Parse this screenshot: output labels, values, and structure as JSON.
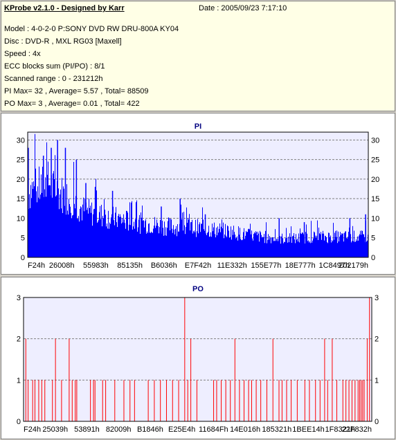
{
  "header": {
    "title": "KProbe v2.1.0 - Designed by Karr",
    "date": "Date : 2005/09/23 7:17:10",
    "lines": [
      "Model : 4-0-2-0 P:SONY     DVD RW DRU-800A  KY04",
      "Disc : DVD-R , MXL RG03 [Maxell]",
      "Speed : 4x",
      "ECC blocks sum (PI/PO) : 8/1",
      "Scanned range : 0 - 231212h",
      "PI Max= 32 , Average= 5.57 , Total= 88509",
      "PO Max= 3 , Average= 0.01 , Total= 422"
    ]
  },
  "colors": {
    "pi_fill": "#0000ff",
    "po_line": "#ff0000",
    "plot_bg": "#eeeeff",
    "grid": "#808080"
  },
  "chart_data": [
    {
      "type": "bar",
      "title": "PI",
      "x_tick_labels": [
        "F24h",
        "26008h",
        "55983h",
        "85135h",
        "B6036h",
        "E7F42h",
        "11E332h",
        "155E77h",
        "18E777h",
        "1C8497h",
        "202179h"
      ],
      "xlim": [
        0,
        2167288
      ],
      "ylim": [
        0,
        32
      ],
      "y_ticks": [
        0,
        5,
        10,
        15,
        20,
        25,
        30
      ],
      "grid": true,
      "envelope": {
        "x": [
          0,
          20000,
          60000,
          100000,
          140000,
          160000,
          200000,
          240000,
          300000,
          350000,
          400000,
          450000,
          500000,
          550000,
          600000,
          650000,
          700000,
          750000,
          800000,
          900000,
          1000000,
          1100000,
          1200000,
          1300000,
          1400000,
          1500000,
          1600000,
          1700000,
          1800000,
          1900000,
          2000000,
          2100000,
          2167288
        ],
        "values": [
          18,
          20,
          20,
          21,
          22,
          20,
          19,
          18,
          16,
          14,
          13,
          12.5,
          12,
          11.5,
          11,
          10.5,
          10,
          10,
          9.5,
          9,
          9,
          8.5,
          8,
          7.5,
          6.5,
          6,
          5.5,
          5.5,
          6,
          6,
          6,
          6,
          6
        ]
      },
      "peaks": [
        {
          "x": 4000,
          "y": 28
        },
        {
          "x": 100000,
          "y": 26
        },
        {
          "x": 150000,
          "y": 28
        },
        {
          "x": 190000,
          "y": 30
        },
        {
          "x": 240000,
          "y": 28
        },
        {
          "x": 310000,
          "y": 25
        },
        {
          "x": 370000,
          "y": 19
        },
        {
          "x": 430000,
          "y": 18
        },
        {
          "x": 540000,
          "y": 17
        },
        {
          "x": 660000,
          "y": 14
        },
        {
          "x": 850000,
          "y": 13
        },
        {
          "x": 970000,
          "y": 15
        },
        {
          "x": 1130000,
          "y": 11
        },
        {
          "x": 1600000,
          "y": 10
        },
        {
          "x": 1760000,
          "y": 9
        },
        {
          "x": 2050000,
          "y": 10
        },
        {
          "x": 2150000,
          "y": 11
        }
      ]
    },
    {
      "type": "bar",
      "title": "PO",
      "x_tick_labels": [
        "F24h",
        "25039h",
        "53891h",
        "82009h",
        "B1846h",
        "E25E4h",
        "11684Fh",
        "14E016h",
        "185321h",
        "1BEE14h",
        "1F8321h",
        "22F832h"
      ],
      "xlim": [
        0,
        2290000
      ],
      "ylim": [
        0,
        3
      ],
      "y_ticks": [
        0,
        1,
        2,
        3
      ],
      "grid": true,
      "x": [
        15000,
        30000,
        60000,
        75000,
        100000,
        120000,
        140000,
        190000,
        210000,
        250000,
        300000,
        320000,
        340000,
        350000,
        440000,
        460000,
        470000,
        520000,
        540000,
        600000,
        660000,
        700000,
        730000,
        820000,
        860000,
        900000,
        940000,
        980000,
        1020000,
        1060000,
        1080000,
        1100000,
        1140000,
        1250000,
        1270000,
        1300000,
        1330000,
        1360000,
        1390000,
        1420000,
        1450000,
        1480000,
        1500000,
        1530000,
        1560000,
        1600000,
        1640000,
        1680000,
        1700000,
        1730000,
        1760000,
        1800000,
        1850000,
        1880000,
        1920000,
        1950000,
        1980000,
        2000000,
        2030000,
        2060000,
        2100000,
        2120000,
        2140000,
        2160000,
        2180000,
        2200000,
        2210000,
        2220000,
        2230000,
        2240000,
        2260000,
        2275000
      ],
      "values": [
        2,
        1,
        1,
        1,
        1,
        1,
        1,
        1,
        2,
        1,
        2,
        1,
        1,
        1,
        1,
        1,
        1,
        1,
        1,
        1,
        1,
        1,
        1,
        1,
        1,
        1,
        1,
        1,
        1,
        3,
        1,
        2,
        1,
        1,
        1,
        1,
        1,
        1,
        2,
        1,
        1,
        1,
        1,
        1,
        1,
        1,
        2,
        1,
        1,
        1,
        1,
        1,
        1,
        1,
        1,
        1,
        2,
        1,
        2,
        1,
        1,
        1,
        1,
        1,
        1,
        1,
        1,
        1,
        1,
        1,
        2,
        3
      ]
    }
  ]
}
